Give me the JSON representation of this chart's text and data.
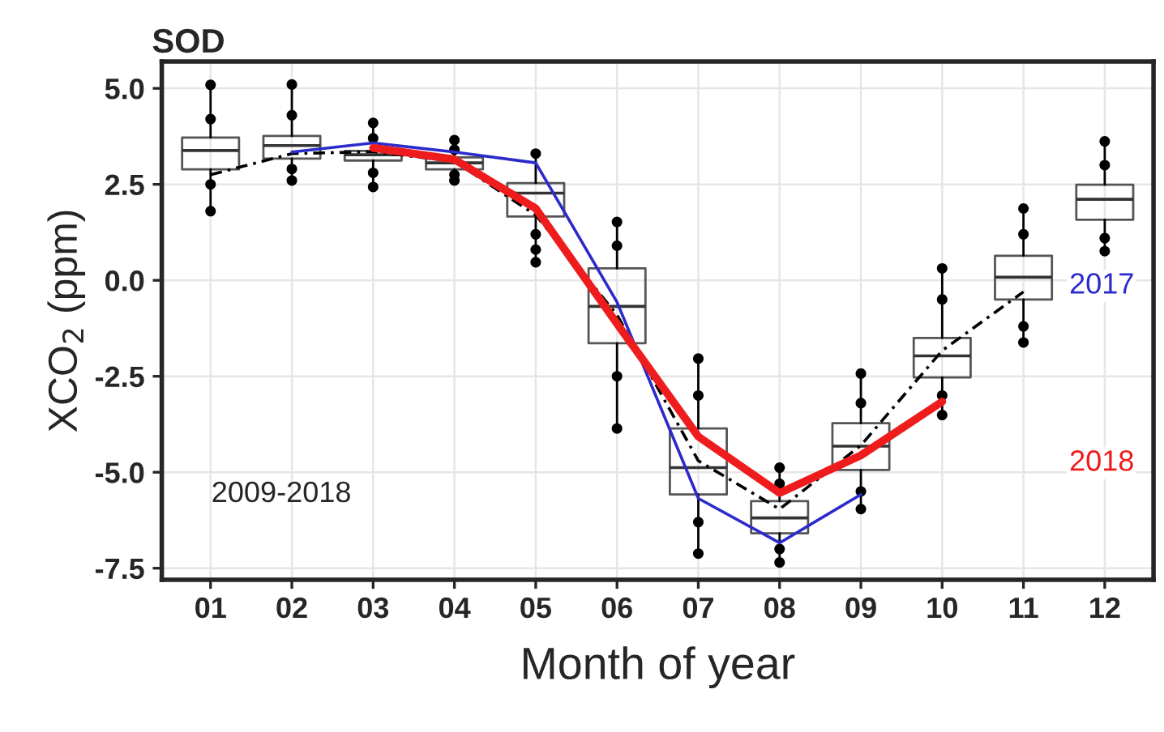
{
  "chart_data": {
    "type": "box",
    "title": "SOD",
    "xlabel": "Month of year",
    "ylabel": "XCO$_{2}$ (ppm)",
    "categories": [
      "01",
      "02",
      "03",
      "04",
      "05",
      "06",
      "07",
      "08",
      "09",
      "10",
      "11",
      "12"
    ],
    "boxes": [
      {
        "low": 1.8,
        "q1": 2.89,
        "median": 3.38,
        "q3": 3.72,
        "high": 5.09
      },
      {
        "low": 2.6,
        "q1": 3.17,
        "median": 3.51,
        "q3": 3.76,
        "high": 5.1
      },
      {
        "low": 2.43,
        "q1": 3.12,
        "median": 3.27,
        "q3": 3.37,
        "high": 4.1
      },
      {
        "low": 2.6,
        "q1": 2.89,
        "median": 3.06,
        "q3": 3.2,
        "high": 3.65
      },
      {
        "low": 0.47,
        "q1": 1.66,
        "median": 2.27,
        "q3": 2.53,
        "high": 3.3
      },
      {
        "low": -3.86,
        "q1": -1.64,
        "median": -0.68,
        "q3": 0.31,
        "high": 1.52
      },
      {
        "low": -7.12,
        "q1": -5.58,
        "median": -4.88,
        "q3": -3.86,
        "high": -2.04
      },
      {
        "low": -7.35,
        "q1": -6.59,
        "median": -6.19,
        "q3": -5.75,
        "high": -4.88
      },
      {
        "low": -5.96,
        "q1": -4.94,
        "median": -4.32,
        "q3": -3.72,
        "high": -2.43
      },
      {
        "low": -3.51,
        "q1": -2.53,
        "median": -1.97,
        "q3": -1.5,
        "high": 0.31
      },
      {
        "low": -1.62,
        "q1": -0.5,
        "median": 0.08,
        "q3": 0.64,
        "high": 1.87
      },
      {
        "low": 0.76,
        "q1": 1.58,
        "median": 2.11,
        "q3": 2.49,
        "high": 3.62
      }
    ],
    "series": [
      {
        "type": "scatter",
        "color": "#000000",
        "marker": "circle",
        "x": [
          "01",
          "01",
          "01",
          "01",
          "02",
          "02",
          "02",
          "02",
          "03",
          "03",
          "03",
          "03",
          "04",
          "04",
          "04",
          "04",
          "05",
          "05",
          "05",
          "05",
          "06",
          "06",
          "06",
          "06",
          "07",
          "07",
          "07",
          "07",
          "08",
          "08",
          "08",
          "08",
          "09",
          "09",
          "09",
          "09",
          "10",
          "10",
          "10",
          "10",
          "11",
          "11",
          "11",
          "11",
          "12",
          "12",
          "12",
          "12"
        ],
        "values": [
          5.09,
          4.2,
          2.5,
          1.8,
          5.1,
          4.3,
          2.9,
          2.6,
          4.1,
          3.7,
          2.8,
          2.43,
          3.65,
          3.4,
          2.75,
          2.6,
          3.3,
          1.2,
          0.8,
          0.47,
          1.52,
          0.9,
          -2.5,
          -3.86,
          -2.04,
          -3.0,
          -6.3,
          -7.12,
          -4.88,
          -5.3,
          -7.0,
          -7.35,
          -2.43,
          -3.2,
          -5.5,
          -5.96,
          0.31,
          -0.5,
          -3.0,
          -3.51,
          1.87,
          1.2,
          -1.2,
          -1.62,
          3.62,
          3.0,
          1.1,
          0.76
        ]
      },
      {
        "type": "line",
        "color": "#000000",
        "line_style": "dashed",
        "x": [
          "01",
          "02",
          "03",
          "04",
          "05",
          "06",
          "07",
          "08",
          "09",
          "10",
          "11"
        ],
        "values": [
          2.75,
          3.3,
          3.35,
          3.1,
          1.7,
          -0.9,
          -4.7,
          -5.96,
          -4.3,
          -1.83,
          -0.3
        ]
      },
      {
        "type": "line",
        "name": "2017",
        "color": "#2b2bcc",
        "x": [
          "02",
          "03",
          "04",
          "05",
          "06",
          "07",
          "08",
          "09"
        ],
        "values": [
          3.34,
          3.58,
          3.34,
          3.06,
          -0.57,
          -5.68,
          -6.84,
          -5.58
        ]
      },
      {
        "type": "line",
        "name": "2018",
        "color": "#ee1c1c",
        "x": [
          "03",
          "04",
          "05",
          "06",
          "07",
          "08",
          "09",
          "10"
        ],
        "values": [
          3.45,
          3.15,
          1.87,
          -1.13,
          -4.07,
          -5.54,
          -4.56,
          -3.16
        ]
      }
    ],
    "annotations": [
      "2009-2018"
    ],
    "ylim": [
      -7.8,
      5.7
    ],
    "yticks": [
      {
        "value": -7.5,
        "label": "-7.5"
      },
      {
        "value": -5.0,
        "label": "-5.0"
      },
      {
        "value": -2.5,
        "label": "-2.5"
      },
      {
        "value": 0.0,
        "label": "0.0"
      },
      {
        "value": 2.5,
        "label": "2.5"
      },
      {
        "value": 5.0,
        "label": "5.0"
      }
    ],
    "grid": true,
    "legend": false
  }
}
